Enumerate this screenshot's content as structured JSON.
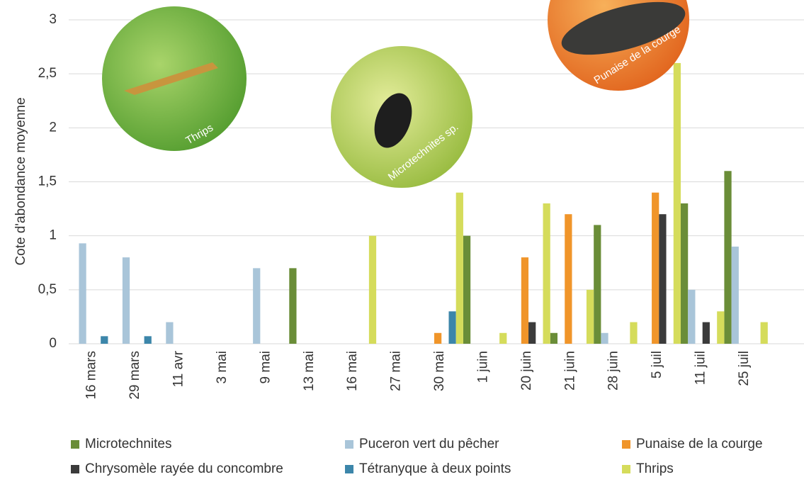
{
  "chart_data": {
    "type": "bar",
    "y_label": "Cote d'abondance moyenne",
    "categories": [
      "16 mars",
      "29 mars",
      "11 avr",
      "3 mai",
      "9 mai",
      "13 mai",
      "16 mai",
      "27 mai",
      "30 mai",
      "1 juin",
      "20 juin",
      "21 juin",
      "28 juin",
      "5 juil",
      "11 juil",
      "25 juil",
      null
    ],
    "series": [
      {
        "name": "Microtechnites",
        "color": "#6a8d38",
        "values": [
          null,
          null,
          null,
          null,
          null,
          0.7,
          null,
          null,
          null,
          1.0,
          null,
          0.1,
          1.1,
          null,
          1.3,
          1.6,
          null
        ]
      },
      {
        "name": "Puceron vert du pêcher",
        "color": "#a9c5d9",
        "values": [
          0.93,
          0.8,
          0.2,
          null,
          0.7,
          null,
          null,
          null,
          null,
          null,
          null,
          null,
          0.1,
          null,
          0.5,
          0.9,
          null
        ]
      },
      {
        "name": "Punaise de la courge",
        "color": "#f0952a",
        "values": [
          null,
          null,
          null,
          null,
          null,
          null,
          null,
          null,
          0.1,
          null,
          0.8,
          1.2,
          null,
          1.4,
          null,
          null,
          null
        ]
      },
      {
        "name": "Chrysomèle rayée du concombre",
        "color": "#3b3b3b",
        "values": [
          null,
          null,
          null,
          null,
          null,
          null,
          null,
          null,
          null,
          null,
          0.2,
          null,
          null,
          1.2,
          0.2,
          null,
          null
        ]
      },
      {
        "name": "Tétranyque à deux points",
        "color": "#3c86aa",
        "values": [
          0.07,
          0.07,
          null,
          null,
          null,
          null,
          null,
          null,
          0.3,
          null,
          null,
          null,
          null,
          null,
          null,
          null,
          null
        ]
      },
      {
        "name": "Thrips",
        "color": "#d5dc5b",
        "values": [
          null,
          null,
          null,
          null,
          null,
          null,
          null,
          1.0,
          null,
          1.4,
          0.1,
          1.3,
          0.5,
          0.2,
          2.6,
          0.3,
          0.2
        ]
      }
    ],
    "ylim": [
      0,
      3
    ],
    "yticks": [
      0,
      {
        "value": 0.5,
        "label": "0,5"
      },
      1,
      {
        "value": 1.5,
        "label": "1,5"
      },
      2,
      {
        "value": 2.5,
        "label": "2,5"
      },
      3
    ],
    "grid": true,
    "annotations": [
      "Thrips",
      "Microtechnites sp.",
      "Punaise de la courge"
    ]
  }
}
